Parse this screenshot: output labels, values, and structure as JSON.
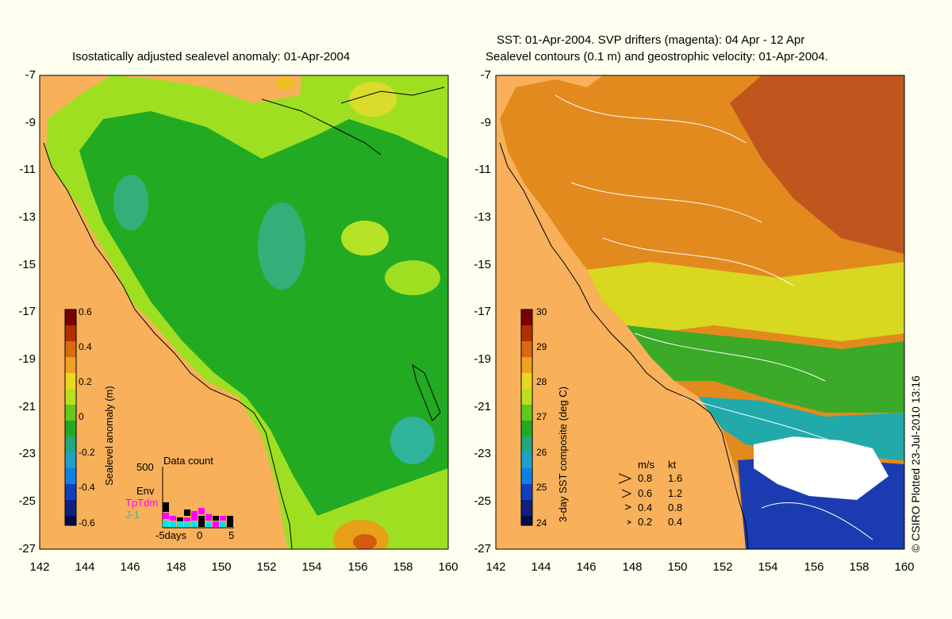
{
  "left_panel": {
    "title": "Isostatically adjusted sealevel anomaly: 01-Apr-2004",
    "colorbar": {
      "label": "Sealevel anomaly (m)",
      "ticks": [
        "0.6",
        "0.4",
        "0.2",
        "0",
        "-0.2",
        "-0.4",
        "-0.6"
      ],
      "range": [
        -0.6,
        0.6
      ]
    },
    "data_count_inset": {
      "title": "Data count",
      "y_max_label": "500",
      "series": [
        {
          "name": "Env",
          "color": "#000000"
        },
        {
          "name": "TpTdm",
          "color": "#ff00ff"
        },
        {
          "name": "J-1",
          "color": "#00e5e5"
        }
      ],
      "x_labels": [
        "-5days",
        "0",
        "5"
      ]
    }
  },
  "right_panel": {
    "title_line1": "SST: 01-Apr-2004. SVP drifters (magenta): 04 Apr - 12 Apr",
    "title_line2": "Sealevel contours (0.1 m) and geostrophic velocity: 01-Apr-2004.",
    "colorbar": {
      "label": "3-day SST composite (deg C)",
      "ticks": [
        "30",
        "29",
        "28",
        "27",
        "26",
        "25",
        "24"
      ],
      "range": [
        24,
        30
      ]
    },
    "velocity_legend": {
      "header_ms": "m/s",
      "header_kt": "kt",
      "rows": [
        {
          "ms": "0.8",
          "kt": "1.6"
        },
        {
          "ms": "0.6",
          "kt": "1.2"
        },
        {
          "ms": "0.4",
          "kt": "0.8"
        },
        {
          "ms": "0.2",
          "kt": "0.4"
        }
      ]
    },
    "credit": "© CSIRO Plotted 23-Jul-2010 13:16"
  },
  "axes": {
    "lat_ticks": [
      "-7",
      "-9",
      "-11",
      "-13",
      "-15",
      "-17",
      "-19",
      "-21",
      "-23",
      "-25",
      "-27"
    ],
    "lon_ticks": [
      "142",
      "144",
      "146",
      "148",
      "150",
      "152",
      "154",
      "156",
      "158",
      "160"
    ],
    "lat_range": [
      -27,
      -7
    ],
    "lon_range": [
      142,
      160
    ]
  },
  "colors": {
    "land": "#f8b05a",
    "background": "#fffff0",
    "sla_green": "#22aa22",
    "sst_orange": "#e38a1e"
  }
}
